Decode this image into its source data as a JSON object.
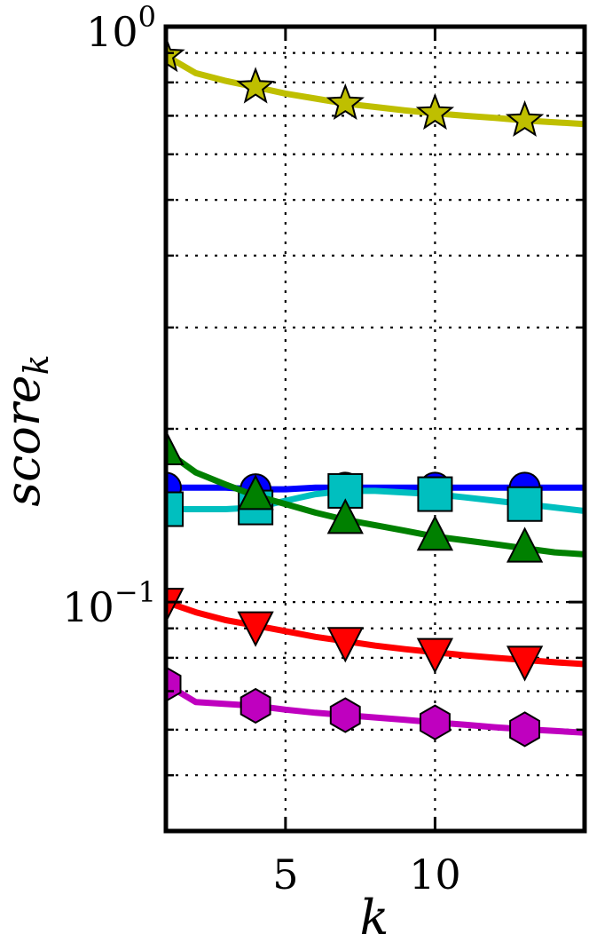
{
  "chart_data": {
    "type": "line",
    "xlabel": "k",
    "ylabel": {
      "base": "score",
      "subscript": "k"
    },
    "x_scale": "linear",
    "y_scale": "log",
    "xlim": [
      1,
      15
    ],
    "ylim": [
      0.04,
      1.0
    ],
    "x_ticks": [
      5,
      10
    ],
    "x_tick_labels": [
      "5",
      "10"
    ],
    "y_major_ticks": [
      {
        "value": 1.0,
        "base": "10",
        "exp": "0"
      },
      {
        "value": 0.1,
        "base": "10",
        "exp": "−1"
      }
    ],
    "y_minor_ticks": [
      0.05,
      0.06,
      0.07,
      0.08,
      0.09,
      0.2,
      0.3,
      0.4,
      0.5,
      0.6,
      0.7,
      0.8,
      0.9
    ],
    "grid": true,
    "legend": false,
    "series": [
      {
        "color": "#bfbf00",
        "marker": "star",
        "x": [
          1,
          2,
          3,
          4,
          5,
          6,
          7,
          8,
          9,
          10,
          11,
          12,
          13,
          14,
          15
        ],
        "y": [
          0.89,
          0.83,
          0.805,
          0.785,
          0.765,
          0.75,
          0.735,
          0.725,
          0.715,
          0.707,
          0.7,
          0.694,
          0.687,
          0.682,
          0.677
        ],
        "marker_x": [
          1,
          4,
          7,
          10,
          13
        ]
      },
      {
        "color": "#0000ff",
        "marker": "circle",
        "x": [
          1,
          2,
          3,
          4,
          5,
          6,
          7,
          8,
          9,
          10,
          11,
          12,
          13,
          14,
          15
        ],
        "y": [
          0.158,
          0.158,
          0.158,
          0.157,
          0.157,
          0.158,
          0.158,
          0.158,
          0.158,
          0.158,
          0.158,
          0.158,
          0.158,
          0.158,
          0.158
        ],
        "marker_x": [
          1,
          4,
          7,
          10,
          13
        ]
      },
      {
        "color": "#00bfbf",
        "marker": "square",
        "x": [
          1,
          2,
          3,
          4,
          5,
          6,
          7,
          8,
          9,
          10,
          11,
          12,
          13,
          14,
          15
        ],
        "y": [
          0.145,
          0.145,
          0.145,
          0.146,
          0.15,
          0.154,
          0.156,
          0.156,
          0.155,
          0.154,
          0.152,
          0.15,
          0.148,
          0.146,
          0.144
        ],
        "marker_x": [
          1,
          4,
          7,
          10,
          13
        ]
      },
      {
        "color": "#008000",
        "marker": "triangle-up",
        "x": [
          1,
          2,
          3,
          4,
          5,
          6,
          7,
          8,
          9,
          10,
          11,
          12,
          13,
          14,
          15
        ],
        "y": [
          0.183,
          0.168,
          0.16,
          0.153,
          0.148,
          0.143,
          0.139,
          0.136,
          0.133,
          0.13,
          0.128,
          0.126,
          0.124,
          0.122,
          0.121
        ],
        "marker_x": [
          1,
          4,
          7,
          10,
          13
        ]
      },
      {
        "color": "#ff0000",
        "marker": "triangle-down",
        "x": [
          1,
          2,
          3,
          4,
          5,
          6,
          7,
          8,
          9,
          10,
          11,
          12,
          13,
          14,
          15
        ],
        "y": [
          0.1,
          0.096,
          0.093,
          0.091,
          0.089,
          0.087,
          0.0855,
          0.084,
          0.0828,
          0.0818,
          0.0808,
          0.08,
          0.0793,
          0.0786,
          0.078
        ],
        "marker_x": [
          1,
          4,
          7,
          10,
          13
        ]
      },
      {
        "color": "#bf00bf",
        "marker": "hexagon",
        "x": [
          1,
          2,
          3,
          4,
          5,
          6,
          7,
          8,
          9,
          10,
          11,
          12,
          13,
          14,
          15
        ],
        "y": [
          0.072,
          0.067,
          0.0665,
          0.066,
          0.065,
          0.0642,
          0.0636,
          0.063,
          0.0624,
          0.0618,
          0.0612,
          0.0606,
          0.0601,
          0.0597,
          0.0593
        ],
        "marker_x": [
          1,
          4,
          7,
          10,
          13
        ]
      }
    ]
  }
}
